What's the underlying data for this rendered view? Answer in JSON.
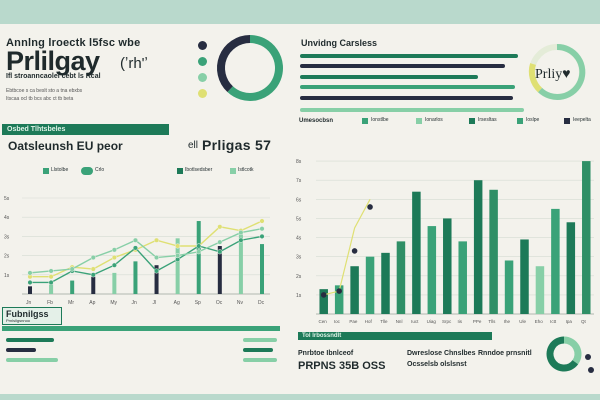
{
  "header": {
    "kicker": "Annlng lroectk l5fsc wbe",
    "title": "Prlilgay",
    "title_suffix": "(ʼrh'ʼ",
    "subtitle": "Ifl stroanncaolel cebt ls Rcal",
    "tiny_lines": [
      "Ebtbcoe s ca beslt sto a tna ebxbs",
      "Itscaa ocl tb bcs abc ct tb beta"
    ]
  },
  "top_right": {
    "label": "Unvidng Carsless",
    "ring_text": "Prliy♥",
    "side_labels": [
      "Ildr",
      "Ilc r",
      "Ict",
      "Ilb"
    ]
  },
  "left_panel": {
    "banner": "Osbed Tlhtsbeles",
    "heading": "Oatsleunsh EU peor",
    "stat": "Prligas 57",
    "prefix": "ell",
    "legend": [
      "Llstolbe",
      "Crlo",
      "Ibotlsedsber",
      "Istlcotk"
    ]
  },
  "right_panel": {
    "legend": [
      "Umesocbsn",
      "Ionstlbe",
      "Ionarlos",
      "Irsesltas",
      "Ioslpe",
      "Ieepelta"
    ]
  },
  "footer_left": {
    "title": "Fubnilgss",
    "subtitle": "Prnlsllgsnnoo"
  },
  "footer_right": {
    "banner": "Tol Irbossndlt",
    "col1": [
      "Pnrbtoe Ibnlceof",
      "PRPNS 35B OSS"
    ],
    "col2": [
      "Dwreslose Chnslbes",
      "Ocsselsb olslsnst"
    ],
    "col3": [
      "Rnndoe prnsnitl",
      ""
    ]
  },
  "colors": {
    "dark_green": "#1d7a58",
    "mid_green": "#3aa278",
    "light_green": "#87cfa7",
    "pale_green": "#a9dcbc",
    "navy": "#272d41",
    "yellow": "#dfe073",
    "background": "#f3f2ec",
    "frame": "#b9d9cc"
  },
  "chart_data": [
    {
      "type": "line",
      "x": [
        "Jn",
        "Fb",
        "Mr",
        "Ap",
        "My",
        "Jn",
        "Jl",
        "Ag",
        "Sp",
        "Oc",
        "Nv",
        "Dc"
      ],
      "y_ticks": [
        "5s",
        "4s",
        "3s",
        "2s",
        "1s"
      ],
      "ylim": [
        0,
        5
      ],
      "series": [
        {
          "color": "#dfe073",
          "values": [
            0.9,
            0.9,
            1.4,
            1.3,
            1.9,
            2.3,
            2.8,
            2.5,
            2.5,
            3.5,
            3.3,
            3.8
          ]
        },
        {
          "color": "#3aa278",
          "values": [
            0.6,
            0.6,
            1.2,
            1.0,
            1.5,
            2.4,
            1.2,
            1.8,
            2.5,
            2.2,
            2.8,
            3.0
          ]
        },
        {
          "color": "#87cfa7",
          "values": [
            1.1,
            1.2,
            1.3,
            1.9,
            2.3,
            2.8,
            1.9,
            2.0,
            2.2,
            2.7,
            3.2,
            3.4
          ]
        }
      ],
      "bars": [
        0.4,
        0.5,
        0.7,
        0.9,
        1.1,
        1.7,
        1.5,
        2.9,
        3.8,
        2.5,
        3.1,
        2.6
      ],
      "grid": true
    },
    {
      "type": "bar",
      "x_ticks": [
        "Cen",
        "Ioc",
        "Pae",
        "Hof",
        "Tlle",
        "Nnl",
        "Iuct",
        "Uiag",
        "Srpc",
        "Iis",
        "PPe",
        "Tlls",
        "Ihe",
        "Ule",
        "Eho",
        "Ictt",
        "Ipa",
        "Qt"
      ],
      "y_ticks": [
        "8s",
        "7s",
        "6s",
        "5s",
        "4s",
        "3s",
        "2s",
        "1s"
      ],
      "ylim": [
        0,
        9
      ],
      "values": [
        1.3,
        1.5,
        2.5,
        3.0,
        3.2,
        3.8,
        6.4,
        4.6,
        5.0,
        3.8,
        7.0,
        6.5,
        2.8,
        3.9,
        2.5,
        5.5,
        4.8,
        8.0
      ],
      "bar_colors": [
        "#1d7a58",
        "#3aa278",
        "#1d7a58",
        "#3aa278",
        "#1d7a58",
        "#2f8f66",
        "#1d7a58",
        "#3aa278",
        "#1d7a58",
        "#3aa278",
        "#1d7a58",
        "#2f8f66",
        "#3aa278",
        "#1d7a58",
        "#87cfa7",
        "#3aa278",
        "#1d7a58",
        "#2f8f66"
      ],
      "overlay_line": {
        "color": "#dfe073",
        "values": [
          1.0,
          1.2,
          4.5,
          6.0
        ]
      },
      "overlay_points": [
        1.0,
        1.2,
        3.3,
        5.6
      ],
      "grid": true
    },
    {
      "type": "pie",
      "values": [
        62,
        38
      ],
      "colors": [
        "#3aa278",
        "#272d41"
      ]
    },
    {
      "type": "pie",
      "values": [
        35,
        65
      ],
      "colors": [
        "#87cfa7",
        "#1d7a58"
      ]
    }
  ]
}
